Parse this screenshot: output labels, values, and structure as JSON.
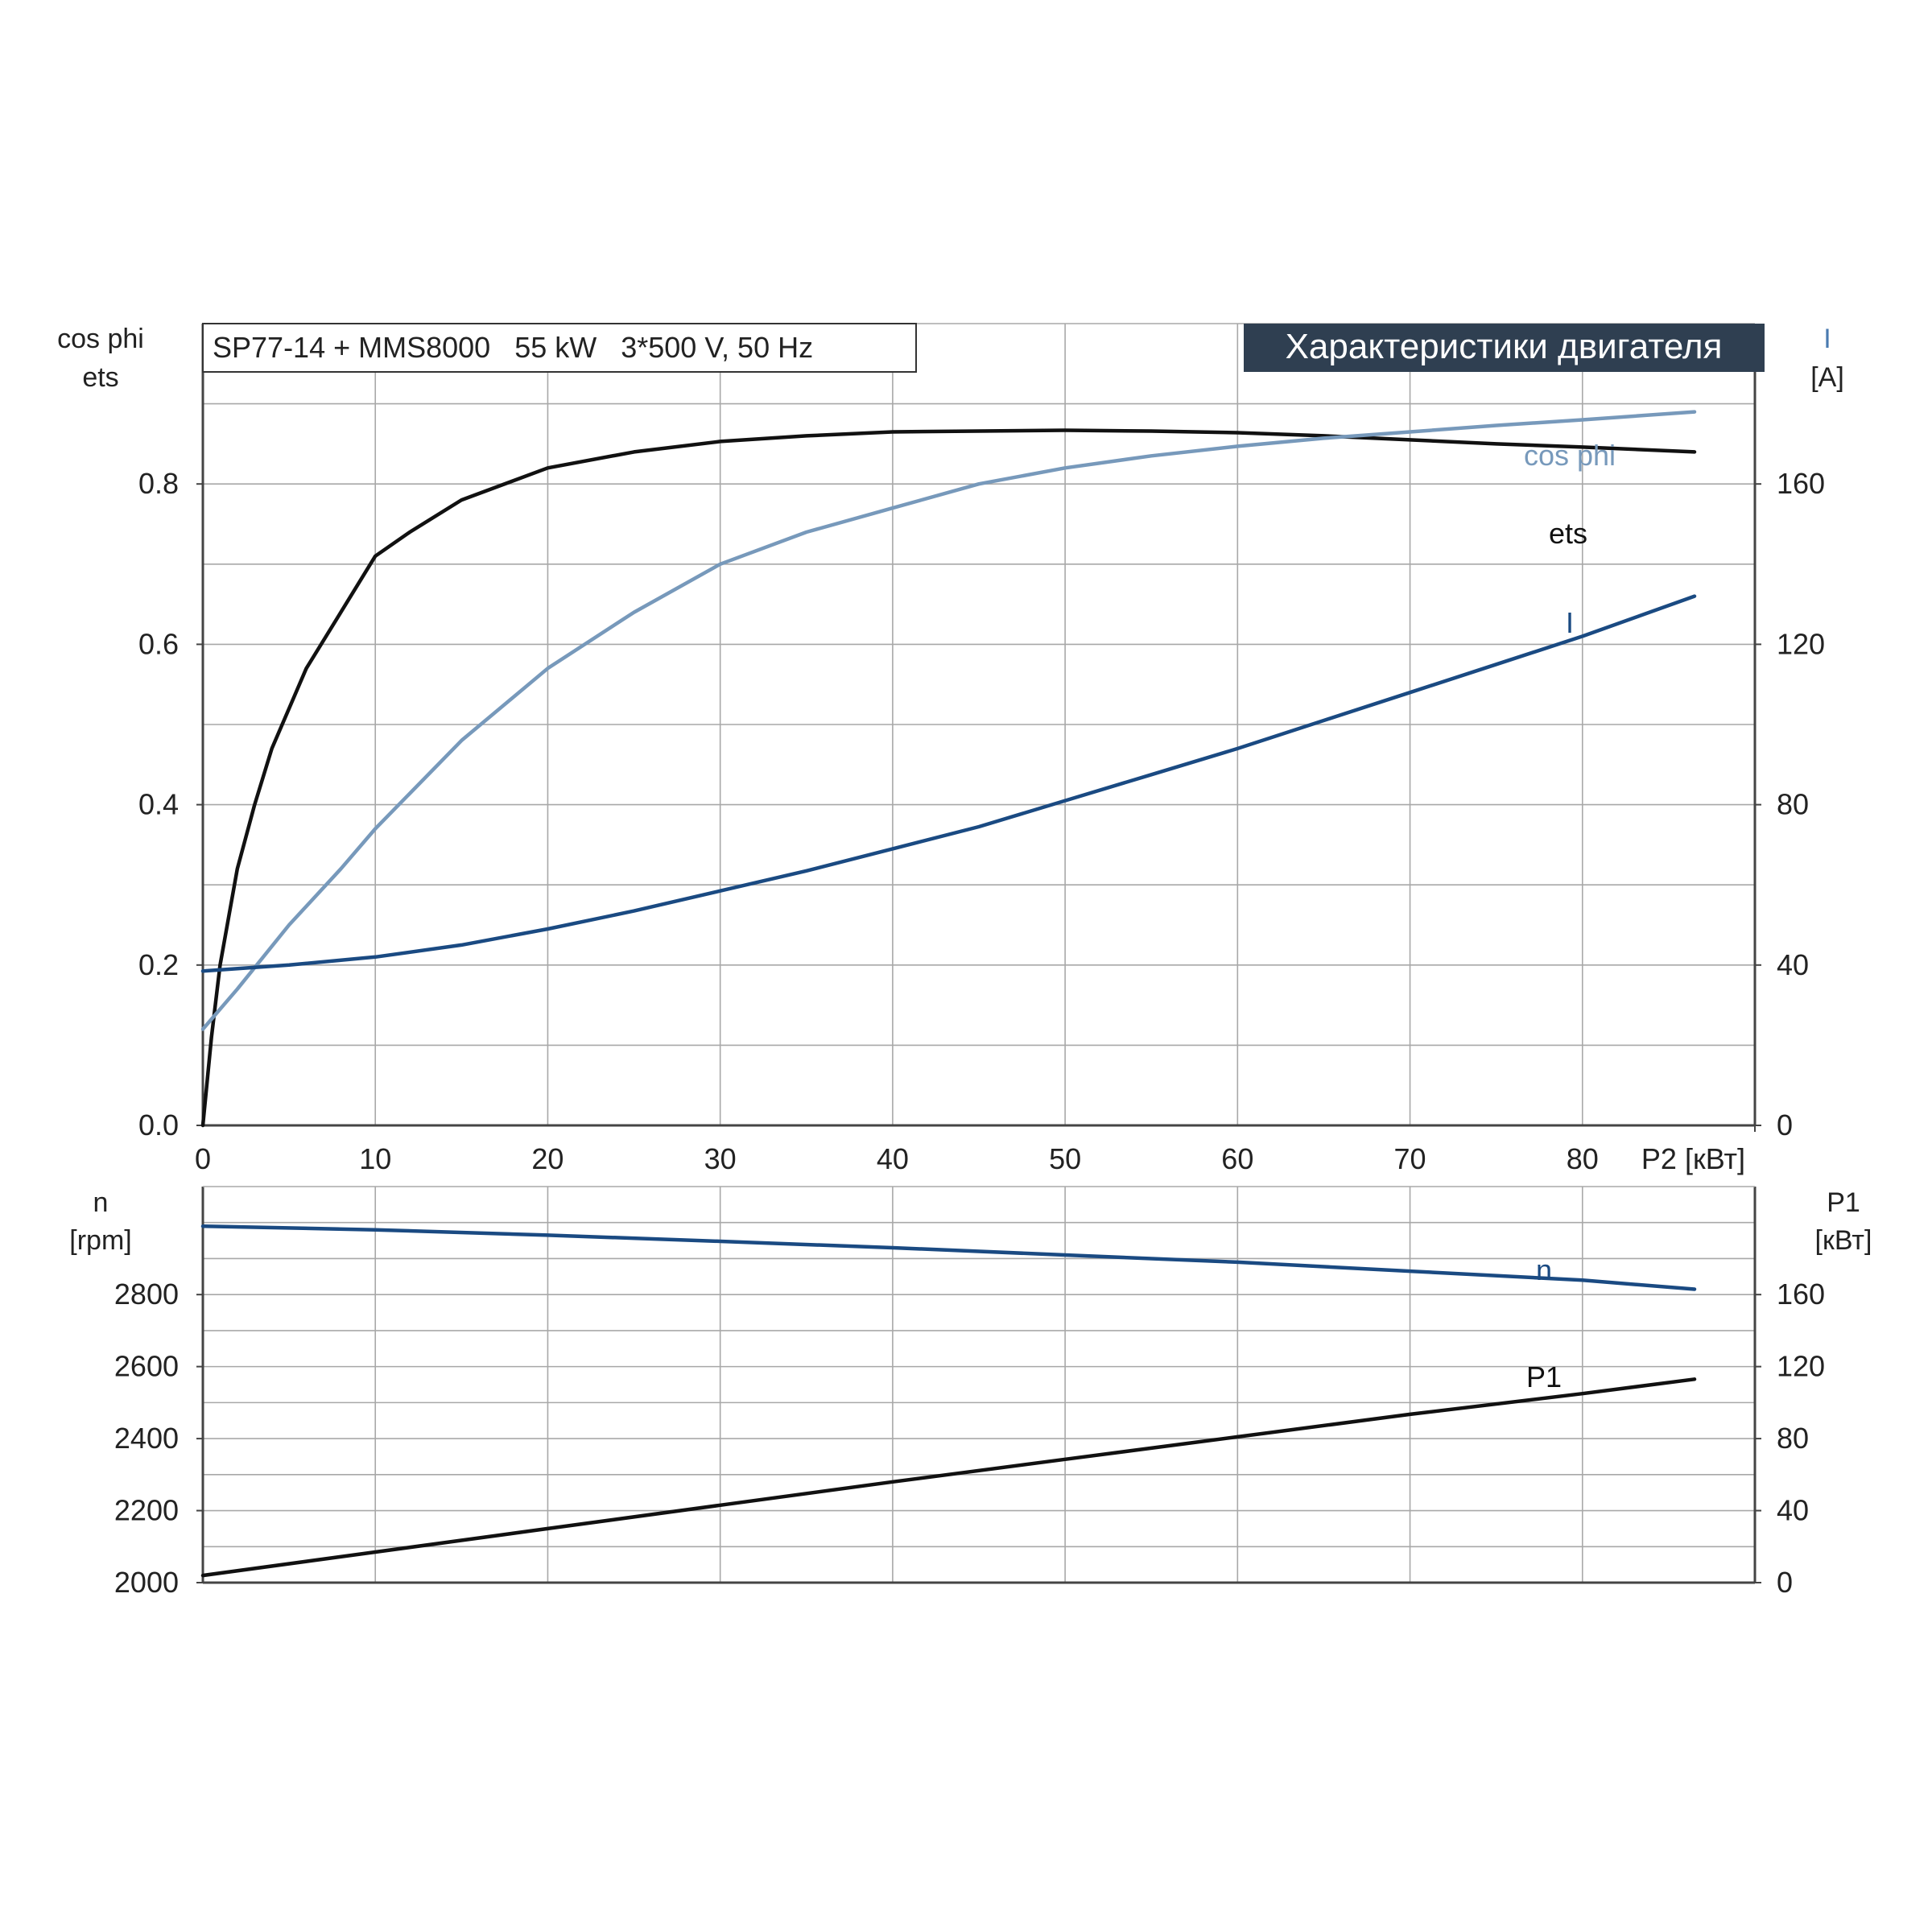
{
  "header": {
    "model_label": "SP77-14 + MMS8000   55 kW   3*500 V, 50 Hz",
    "section_title": "Характеристики двигателя"
  },
  "colors": {
    "dark_blue": "#1a4a82",
    "light_blue": "#7799bb",
    "black": "#111111",
    "grid": "#a8a8a8",
    "title_bg": "#2f3f51",
    "title_fg": "#ffffff"
  },
  "chart_data": [
    {
      "type": "line",
      "name": "upper",
      "xlabel": "P2 [кВт]",
      "xlim": [
        0,
        90
      ],
      "xticks": [
        0,
        10,
        20,
        30,
        40,
        50,
        60,
        70,
        80
      ],
      "x_grid_step": 10,
      "left_axis": {
        "label_lines": [
          "cos phi",
          "ets"
        ],
        "lim": [
          0,
          1.0
        ],
        "ticks": [
          0.0,
          0.2,
          0.4,
          0.6,
          0.8
        ],
        "tick_labels": [
          "0.0",
          "0.2",
          "0.4",
          "0.6",
          "0.8"
        ],
        "grid_step": 0.1
      },
      "right_axis": {
        "label_lines": [
          "I",
          "[A]"
        ],
        "lim": [
          0,
          200
        ],
        "ticks": [
          0,
          40,
          80,
          120,
          160
        ],
        "tick_labels": [
          "0",
          "40",
          "80",
          "120",
          "160"
        ]
      },
      "grid": true,
      "series": [
        {
          "name": "ets",
          "axis": "left",
          "color": "#111111",
          "points": [
            [
              0,
              0
            ],
            [
              0.5,
              0.11
            ],
            [
              1,
              0.2
            ],
            [
              2,
              0.32
            ],
            [
              3,
              0.4
            ],
            [
              4,
              0.47
            ],
            [
              5,
              0.52
            ],
            [
              6,
              0.57
            ],
            [
              8,
              0.64
            ],
            [
              10,
              0.71
            ],
            [
              12,
              0.74
            ],
            [
              15,
              0.78
            ],
            [
              20,
              0.82
            ],
            [
              25,
              0.84
            ],
            [
              30,
              0.853
            ],
            [
              35,
              0.86
            ],
            [
              40,
              0.865
            ],
            [
              45,
              0.866
            ],
            [
              50,
              0.867
            ],
            [
              55,
              0.866
            ],
            [
              60,
              0.864
            ],
            [
              65,
              0.86
            ],
            [
              70,
              0.855
            ],
            [
              75,
              0.85
            ],
            [
              80,
              0.846
            ],
            [
              86.5,
              0.84
            ]
          ]
        },
        {
          "name": "cos phi",
          "axis": "left",
          "color": "#7799bb",
          "points": [
            [
              0,
              0.12
            ],
            [
              2,
              0.17
            ],
            [
              5,
              0.25
            ],
            [
              8,
              0.32
            ],
            [
              10,
              0.37
            ],
            [
              15,
              0.48
            ],
            [
              20,
              0.57
            ],
            [
              25,
              0.64
            ],
            [
              30,
              0.7
            ],
            [
              35,
              0.74
            ],
            [
              40,
              0.77
            ],
            [
              45,
              0.8
            ],
            [
              50,
              0.82
            ],
            [
              55,
              0.835
            ],
            [
              60,
              0.847
            ],
            [
              65,
              0.857
            ],
            [
              70,
              0.865
            ],
            [
              75,
              0.873
            ],
            [
              80,
              0.88
            ],
            [
              86.5,
              0.89
            ]
          ]
        },
        {
          "name": "I",
          "axis": "right",
          "color": "#1a4a82",
          "points": [
            [
              0,
              38.5
            ],
            [
              5,
              40
            ],
            [
              10,
              42
            ],
            [
              15,
              45
            ],
            [
              20,
              49
            ],
            [
              25,
              53.5
            ],
            [
              30,
              58.5
            ],
            [
              35,
              63.5
            ],
            [
              40,
              69
            ],
            [
              45,
              74.5
            ],
            [
              50,
              81
            ],
            [
              55,
              87.5
            ],
            [
              60,
              94
            ],
            [
              65,
              101
            ],
            [
              70,
              108
            ],
            [
              75,
              115
            ],
            [
              80,
              122
            ],
            [
              86.5,
              132
            ]
          ]
        }
      ]
    },
    {
      "type": "line",
      "name": "lower",
      "xlim": [
        0,
        90
      ],
      "x_grid_step": 10,
      "left_axis": {
        "label_lines": [
          "n",
          "[rpm]"
        ],
        "lim": [
          2000,
          3100
        ],
        "ticks": [
          2000,
          2200,
          2400,
          2600,
          2800
        ],
        "tick_labels": [
          "2000",
          "2200",
          "2400",
          "2600",
          "2800"
        ],
        "grid_step": 100
      },
      "right_axis": {
        "label_lines": [
          "P1",
          "[кВт]"
        ],
        "lim": [
          0,
          220
        ],
        "ticks": [
          0,
          40,
          80,
          120,
          160
        ],
        "tick_labels": [
          "0",
          "40",
          "80",
          "120",
          "160"
        ]
      },
      "grid": true,
      "series": [
        {
          "name": "n",
          "axis": "left",
          "color": "#1a4a82",
          "points": [
            [
              0,
              2990
            ],
            [
              10,
              2980
            ],
            [
              20,
              2965
            ],
            [
              30,
              2948
            ],
            [
              40,
              2930
            ],
            [
              50,
              2910
            ],
            [
              60,
              2890
            ],
            [
              70,
              2865
            ],
            [
              80,
              2840
            ],
            [
              86.5,
              2815
            ]
          ]
        },
        {
          "name": "P1",
          "axis": "right",
          "color": "#111111",
          "points": [
            [
              0,
              4
            ],
            [
              10,
              17
            ],
            [
              20,
              30
            ],
            [
              30,
              43
            ],
            [
              40,
              56
            ],
            [
              50,
              68.5
            ],
            [
              60,
              81
            ],
            [
              70,
              93.5
            ],
            [
              80,
              105
            ],
            [
              86.5,
              113
            ]
          ]
        }
      ]
    }
  ]
}
